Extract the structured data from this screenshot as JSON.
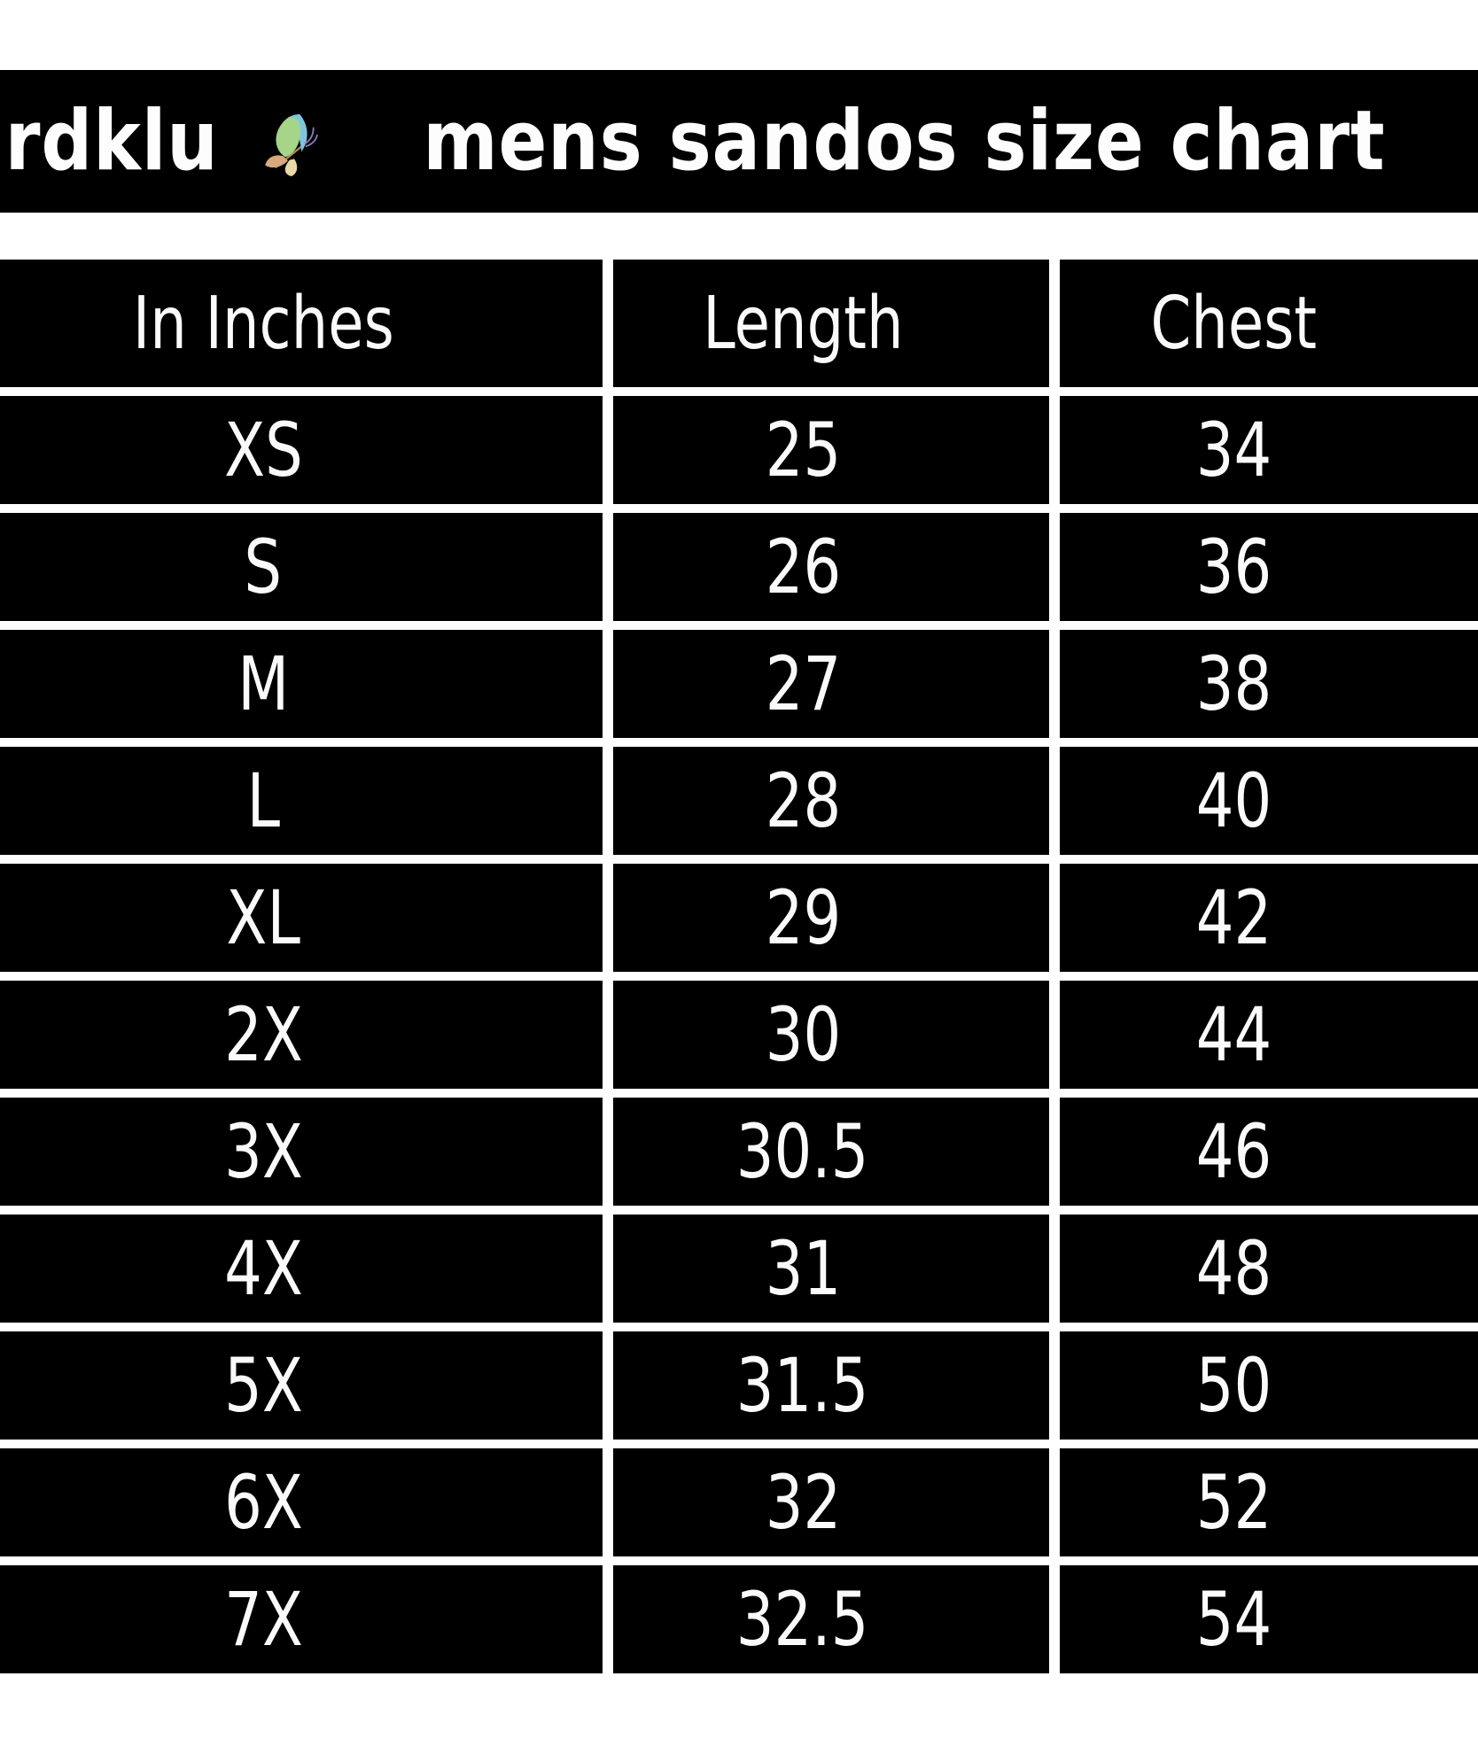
{
  "title": {
    "brand": "rdklu",
    "suffix": "mens sandos size chart"
  },
  "colors": {
    "page_background": "#ffffff",
    "band_background": "#000000",
    "cell_background": "#000000",
    "text": "#fdfdfd",
    "butterfly_green": "#a6d488",
    "butterfly_blue": "#7fc6dc",
    "butterfly_tan": "#d9a87c",
    "butterfly_cream": "#ead9a8",
    "butterfly_antenna": "#8a7bbf",
    "butterfly_body": "#b08a5a"
  },
  "table": {
    "headers": [
      "In Inches",
      "Length",
      "Chest"
    ],
    "rows": [
      {
        "size": "XS",
        "length": "25",
        "chest": "34"
      },
      {
        "size": "S",
        "length": "26",
        "chest": "36"
      },
      {
        "size": "M",
        "length": "27",
        "chest": "38"
      },
      {
        "size": "L",
        "length": "28",
        "chest": "40"
      },
      {
        "size": "XL",
        "length": "29",
        "chest": "42"
      },
      {
        "size": "2X",
        "length": "30",
        "chest": "44"
      },
      {
        "size": "3X",
        "length": "30.5",
        "chest": "46"
      },
      {
        "size": "4X",
        "length": "31",
        "chest": "48"
      },
      {
        "size": "5X",
        "length": "31.5",
        "chest": "50"
      },
      {
        "size": "6X",
        "length": "32",
        "chest": "52"
      },
      {
        "size": "7X",
        "length": "32.5",
        "chest": "54"
      }
    ]
  }
}
